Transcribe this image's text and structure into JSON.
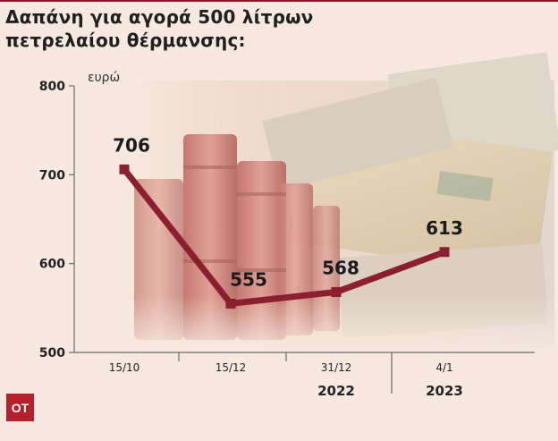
{
  "title_lines": [
    "Δαπάνη για αγορά 500 λίτρων",
    "πετρελαίου θέρμανσης:"
  ],
  "logo": "OT",
  "colors": {
    "line": "#8b1e2f",
    "text": "#1f1f1f",
    "logo_bg": "#b6202d",
    "background": "#f7e9df"
  },
  "chart_data": {
    "type": "line",
    "title": "Δαπάνη για αγορά 500 λίτρων πετρελαίου θέρμανσης:",
    "ylabel": "ευρώ",
    "ylim": [
      500,
      800
    ],
    "yticks": [
      800,
      700,
      600,
      500
    ],
    "categories": [
      "15/10",
      "15/12",
      "31/12",
      "4/1"
    ],
    "values": [
      706,
      555,
      568,
      613
    ],
    "data_labels": [
      "706",
      "555",
      "568",
      "613"
    ],
    "year_groups": [
      {
        "label": "2022",
        "categories": [
          "15/10",
          "15/12",
          "31/12"
        ]
      },
      {
        "label": "2023",
        "categories": [
          "4/1"
        ]
      }
    ],
    "grid": false,
    "legend": "none"
  }
}
